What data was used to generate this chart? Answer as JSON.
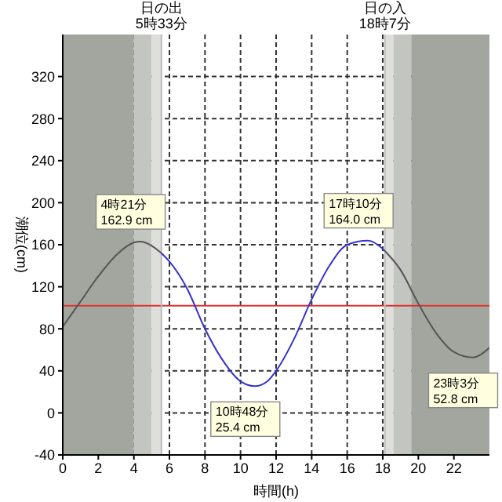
{
  "chart_data": {
    "type": "line",
    "xlabel": "時間(h)",
    "ylabel": "潮位(cm)",
    "xlim": [
      0,
      24
    ],
    "xticks": [
      0,
      2,
      4,
      6,
      8,
      10,
      12,
      14,
      16,
      18,
      20,
      22
    ],
    "ylim": [
      -40,
      360
    ],
    "yticks": [
      -40,
      0,
      40,
      80,
      120,
      160,
      200,
      240,
      280,
      320
    ],
    "grid": true,
    "marker": "none",
    "line_style": "solid",
    "series": [
      {
        "color": "#555555",
        "x": [
          0,
          1,
          2,
          3,
          4,
          4.35,
          5,
          5.55
        ],
        "values": [
          82,
          106,
          130,
          150,
          162,
          162.9,
          159,
          152
        ]
      },
      {
        "color": "#3333cc",
        "x": [
          5.55,
          6,
          7,
          8,
          9,
          10,
          10.8,
          11.5,
          12,
          13,
          14,
          15,
          16,
          17.17,
          18,
          18.12
        ],
        "values": [
          152,
          144,
          118,
          80,
          50,
          30,
          25.4,
          30,
          40,
          70,
          108,
          140,
          160,
          164,
          156,
          154
        ]
      },
      {
        "color": "#555555",
        "x": [
          18.12,
          19,
          20,
          21,
          22,
          23.05,
          24
        ],
        "values": [
          154,
          136,
          104,
          76,
          58,
          52.8,
          62
        ]
      }
    ],
    "bands": [
      {
        "axis": "x",
        "from": 0,
        "to": 4,
        "color": "#a3a69f"
      },
      {
        "axis": "x",
        "from": 4,
        "to": 5,
        "color": "#c3c5c0"
      },
      {
        "axis": "x",
        "from": 5,
        "to": 5.55,
        "color": "#dededb"
      },
      {
        "axis": "x",
        "from": 18.12,
        "to": 18.6,
        "color": "#dededb"
      },
      {
        "axis": "x",
        "from": 18.6,
        "to": 19.6,
        "color": "#c3c5c0"
      },
      {
        "axis": "x",
        "from": 19.6,
        "to": 24,
        "color": "#a3a69f"
      }
    ],
    "ref_lines": [
      {
        "axis": "y",
        "value": 102,
        "color": "#e03030"
      },
      {
        "axis": "x",
        "value": 5.55,
        "label": "日の出\n5時33分",
        "color": "#bbbbbb"
      },
      {
        "axis": "x",
        "value": 18.12,
        "label": "日の入\n18時7分",
        "color": "#bbbbbb"
      }
    ],
    "annotations": [
      {
        "text": "4時21分\n162.9 cm",
        "x": 4.35,
        "y": 162.9
      },
      {
        "text": "10時48分\n25.4 cm",
        "x": 10.8,
        "y": 25.4
      },
      {
        "text": "17時10分\n164.0 cm",
        "x": 17.17,
        "y": 164.0
      },
      {
        "text": "23時3分\n52.8 cm",
        "x": 23.05,
        "y": 52.8
      }
    ]
  }
}
